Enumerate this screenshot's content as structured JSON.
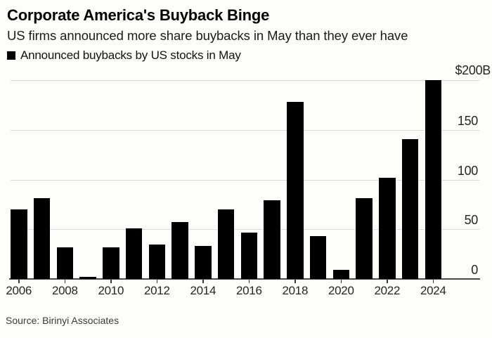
{
  "header": {
    "title": "Corporate America's Buyback Binge",
    "subtitle": "US firms announced more share buybacks in May than they ever have"
  },
  "legend": {
    "label": "Announced buybacks by US stocks in May",
    "marker_color": "#000000"
  },
  "chart_data": {
    "type": "bar",
    "title": "Corporate America's Buyback Binge",
    "subtitle": "US firms announced more share buybacks in May than they ever have",
    "series_name": "Announced buybacks by US stocks in May",
    "categories": [
      2006,
      2007,
      2008,
      2009,
      2010,
      2011,
      2012,
      2013,
      2014,
      2015,
      2016,
      2017,
      2018,
      2019,
      2020,
      2021,
      2022,
      2023,
      2024
    ],
    "values": [
      70,
      81,
      32,
      2,
      32,
      51,
      35,
      57,
      33,
      70,
      47,
      79,
      178,
      43,
      9,
      81,
      102,
      141,
      200
    ],
    "unit": "$B",
    "bar_color": "#000000",
    "grid": true,
    "y_axis": {
      "side": "right",
      "min": 0,
      "max": 200,
      "ticks": [
        0,
        50,
        100,
        150
      ],
      "top_label": "$200B"
    },
    "x_axis": {
      "tick_labels": [
        "2006",
        "2008",
        "2010",
        "2012",
        "2014",
        "2016",
        "2018",
        "2020",
        "2022",
        "2024"
      ],
      "tick_interval": 2
    }
  },
  "source": {
    "text": "Source: Birinyi Associates"
  },
  "colors": {
    "background": "#fffdfa",
    "gridline": "#dcdcdc",
    "axis": "#4a4a4a",
    "text": "#262626"
  }
}
